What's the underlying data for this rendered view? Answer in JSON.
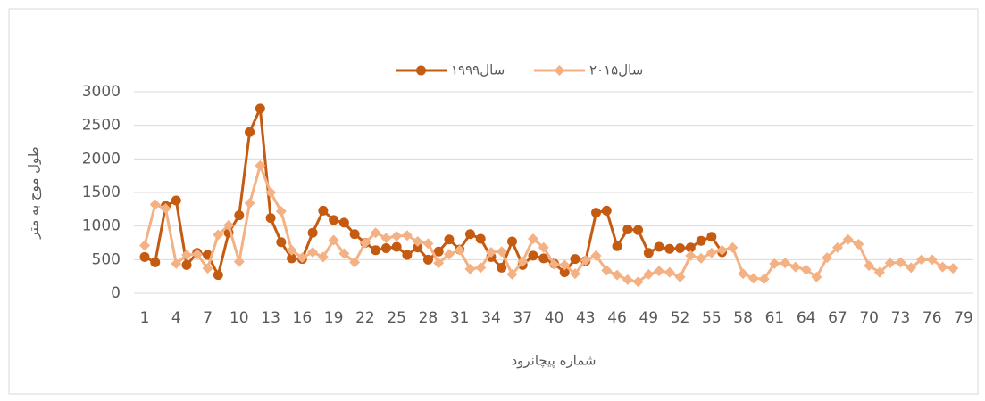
{
  "chart_data": {
    "type": "line",
    "x_label": "شماره پیچانرود",
    "y_label": "طول موج به متر",
    "categories": [
      1,
      null,
      null,
      4,
      null,
      null,
      7,
      null,
      null,
      10,
      null,
      null,
      13,
      null,
      null,
      16,
      null,
      null,
      19,
      null,
      null,
      22,
      null,
      null,
      25,
      null,
      null,
      28,
      null,
      null,
      31,
      null,
      null,
      34,
      null,
      null,
      37,
      null,
      null,
      40,
      null,
      null,
      43,
      null,
      null,
      46,
      null,
      null,
      49,
      null,
      null,
      52,
      null,
      null,
      55,
      null,
      null,
      58,
      null,
      null,
      61,
      null,
      null,
      64,
      null,
      null,
      67,
      null,
      null,
      70,
      null,
      null,
      73,
      null,
      null,
      76,
      null,
      null,
      79
    ],
    "series": [
      {
        "name": "سال۱۹۹۹",
        "color": "#c55a11",
        "marker": "circle",
        "values": [
          540,
          460,
          1300,
          1380,
          420,
          600,
          570,
          270,
          900,
          1160,
          2400,
          2750,
          1120,
          760,
          520,
          510,
          900,
          1230,
          1090,
          1050,
          880,
          750,
          640,
          670,
          690,
          570,
          680,
          500,
          620,
          800,
          650,
          880,
          810,
          540,
          380,
          770,
          420,
          560,
          520,
          440,
          310,
          510,
          480,
          1200,
          1230,
          700,
          950,
          940,
          600,
          690,
          660,
          670,
          680,
          780,
          840,
          610,
          null,
          null,
          null,
          null,
          null,
          null,
          null,
          null,
          null,
          null,
          null,
          null,
          null,
          null,
          null,
          null,
          null,
          null,
          null,
          null,
          null,
          null,
          null
        ]
      },
      {
        "name": "سال۲۰۱۵",
        "color": "#f4b183",
        "marker": "diamond",
        "values": [
          710,
          1320,
          1260,
          440,
          570,
          580,
          370,
          870,
          1010,
          470,
          1340,
          1900,
          1500,
          1220,
          640,
          530,
          610,
          540,
          790,
          590,
          460,
          750,
          900,
          820,
          850,
          860,
          770,
          740,
          450,
          580,
          640,
          360,
          380,
          610,
          620,
          280,
          470,
          810,
          680,
          430,
          420,
          290,
          490,
          560,
          340,
          270,
          200,
          170,
          280,
          330,
          310,
          240,
          560,
          520,
          600,
          640,
          680,
          290,
          220,
          210,
          440,
          450,
          390,
          350,
          240,
          530,
          680,
          800,
          730,
          410,
          310,
          450,
          460,
          380,
          500,
          500,
          390,
          370,
          null
        ]
      }
    ],
    "ylim": [
      0,
      3000
    ],
    "yticks": [
      0,
      500,
      1000,
      1500,
      2000,
      2500,
      3000
    ],
    "grid": true,
    "legend": "top"
  }
}
